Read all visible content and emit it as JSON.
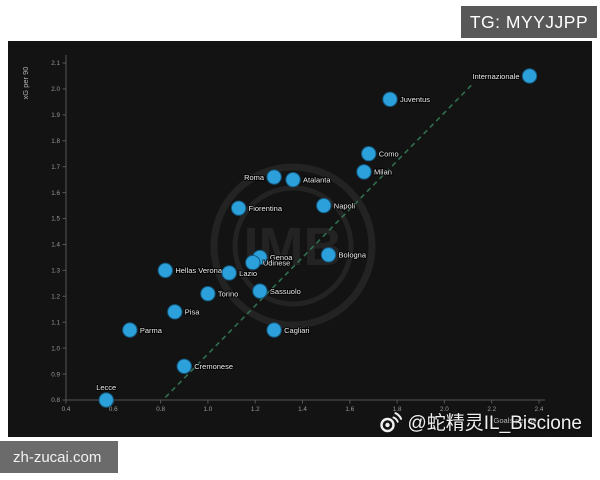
{
  "badge": {
    "text": "TG: MYYJJPP"
  },
  "site_banner": {
    "text": "zh-zucai.com"
  },
  "author_watermark": {
    "icon": "weibo-icon",
    "handle": "@蛇精灵IL_Biscione"
  },
  "background_watermark": {
    "monogram": "IMB"
  },
  "chart_data": {
    "type": "scatter",
    "title": "",
    "xlabel": "Goals per 90",
    "ylabel": "xG per 90",
    "xlim": [
      0.4,
      2.4
    ],
    "ylim": [
      0.8,
      2.1
    ],
    "x_ticks": [
      0.4,
      0.6,
      0.8,
      1.0,
      1.2,
      1.4,
      1.6,
      1.8,
      2.0,
      2.2,
      2.4
    ],
    "y_ticks": [
      0.8,
      0.9,
      1.0,
      1.1,
      1.2,
      1.3,
      1.4,
      1.5,
      1.6,
      1.7,
      1.8,
      1.9,
      2.0,
      2.1
    ],
    "grid": false,
    "legend": "none",
    "colors": {
      "panel_background": "#131313",
      "point": "#2ba0da",
      "point_edge": "#14587e",
      "trend": "#337a55",
      "axis": "#565656",
      "tick_text": "#9a9a9a",
      "axis_label_text": "#b3b3b3",
      "team_label_text": "#ececec",
      "watermark_logo": "#232323"
    },
    "trend_line": {
      "style": "dashed",
      "x1": 0.82,
      "y1": 0.81,
      "x2": 2.12,
      "y2": 2.02
    },
    "series": [
      {
        "team": "Internazionale",
        "x": 2.36,
        "y": 2.05,
        "label_side": "left"
      },
      {
        "team": "Juventus",
        "x": 1.77,
        "y": 1.96,
        "label_side": "right"
      },
      {
        "team": "Como",
        "x": 1.68,
        "y": 1.75,
        "label_side": "right"
      },
      {
        "team": "Milan",
        "x": 1.66,
        "y": 1.68,
        "label_side": "right"
      },
      {
        "team": "Roma",
        "x": 1.28,
        "y": 1.66,
        "label_side": "left"
      },
      {
        "team": "Atalanta",
        "x": 1.36,
        "y": 1.65,
        "label_side": "right"
      },
      {
        "team": "Napoli",
        "x": 1.49,
        "y": 1.55,
        "label_side": "right"
      },
      {
        "team": "Fiorentina",
        "x": 1.13,
        "y": 1.54,
        "label_side": "right"
      },
      {
        "team": "Bologna",
        "x": 1.51,
        "y": 1.36,
        "label_side": "right"
      },
      {
        "team": "Genoa",
        "x": 1.22,
        "y": 1.35,
        "label_side": "right"
      },
      {
        "team": "Udinese",
        "x": 1.19,
        "y": 1.33,
        "label_side": "right"
      },
      {
        "team": "Hellas Verona",
        "x": 0.82,
        "y": 1.3,
        "label_side": "right"
      },
      {
        "team": "Lazio",
        "x": 1.09,
        "y": 1.29,
        "label_side": "right"
      },
      {
        "team": "Sassuolo",
        "x": 1.22,
        "y": 1.22,
        "label_side": "right"
      },
      {
        "team": "Torino",
        "x": 1.0,
        "y": 1.21,
        "label_side": "right"
      },
      {
        "team": "Pisa",
        "x": 0.86,
        "y": 1.14,
        "label_side": "right"
      },
      {
        "team": "Parma",
        "x": 0.67,
        "y": 1.07,
        "label_side": "right"
      },
      {
        "team": "Cagliari",
        "x": 1.28,
        "y": 1.07,
        "label_side": "right"
      },
      {
        "team": "Cremonese",
        "x": 0.9,
        "y": 0.93,
        "label_side": "right"
      },
      {
        "team": "Lecce",
        "x": 0.57,
        "y": 0.8,
        "label_side": "above"
      }
    ]
  }
}
